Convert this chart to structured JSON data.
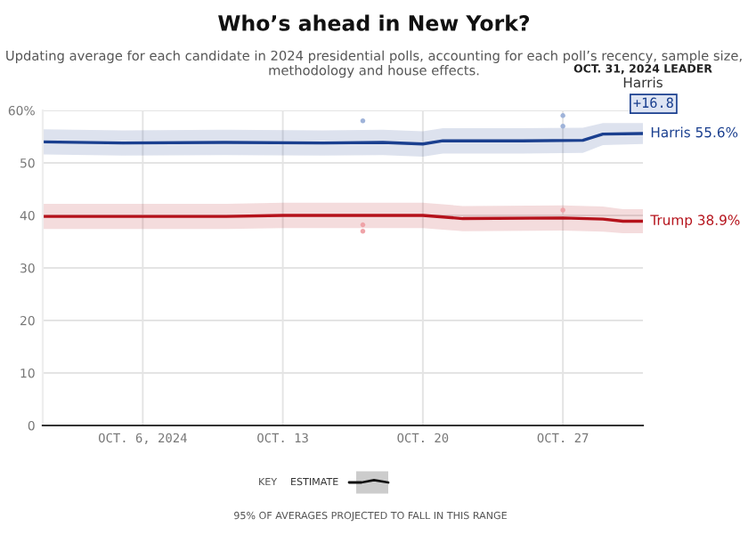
{
  "chart_data": {
    "type": "line",
    "title": "Who’s ahead in New York?",
    "subtitle": "Updating average for each candidate in 2024 presidential polls, accounting for each poll’s recency, sample size, methodology and house effects.",
    "x": [
      "2024-10-01",
      "2024-10-05",
      "2024-10-10",
      "2024-10-15",
      "2024-10-18",
      "2024-10-20",
      "2024-10-21",
      "2024-10-25",
      "2024-10-28",
      "2024-10-29",
      "2024-10-31"
    ],
    "series": [
      {
        "color": "#1a3f8f",
        "values": [
          54.0,
          53.8,
          53.9,
          53.8,
          53.9,
          53.6,
          54.2,
          54.2,
          54.3,
          55.5,
          55.6
        ],
        "lower": [
          51.6,
          51.4,
          51.5,
          51.4,
          51.5,
          51.2,
          51.8,
          51.8,
          51.9,
          53.4,
          53.6
        ],
        "upper": [
          56.4,
          56.2,
          56.3,
          56.2,
          56.3,
          56.0,
          56.6,
          56.6,
          56.7,
          57.6,
          57.6
        ]
      },
      {
        "color": "#b5121b",
        "x": [
          "2024-10-01",
          "2024-10-10",
          "2024-10-13",
          "2024-10-20",
          "2024-10-22",
          "2024-10-27",
          "2024-10-29",
          "2024-10-30",
          "2024-10-31"
        ],
        "values": [
          39.8,
          39.8,
          40.0,
          40.0,
          39.4,
          39.5,
          39.3,
          38.9,
          38.9
        ],
        "lower": [
          37.4,
          37.4,
          37.6,
          37.6,
          37.0,
          37.1,
          36.9,
          36.6,
          36.6
        ],
        "upper": [
          42.2,
          42.2,
          42.4,
          42.4,
          41.8,
          41.9,
          41.7,
          41.2,
          41.2
        ]
      },
      {
        "type": "scatter",
        "color": "#9fb3d9",
        "x": [
          "2024-10-17",
          "2024-10-27",
          "2024-10-27"
        ],
        "values": [
          58,
          59,
          57
        ]
      },
      {
        "type": "scatter",
        "color": "#efa3a8",
        "x": [
          "2024-10-17",
          "2024-10-17",
          "2024-10-27"
        ],
        "values": [
          38.2,
          37,
          41
        ]
      }
    ],
    "xlim": [
      "2024-10-01",
      "2024-10-31"
    ],
    "xticks": [
      {
        "value": "2024-10-06",
        "label": "OCT. 6, 2024"
      },
      {
        "value": "2024-10-13",
        "label": "OCT. 13"
      },
      {
        "value": "2024-10-20",
        "label": "OCT. 20"
      },
      {
        "value": "2024-10-27",
        "label": "OCT. 27"
      }
    ],
    "ylim": [
      0,
      60
    ],
    "yticks": [
      0,
      10,
      20,
      30,
      40,
      50,
      {
        "value": 60,
        "label": "60%"
      }
    ],
    "grid": true,
    "annotations": [
      {
        "text": "Harris 55.6%",
        "x": "2024-10-31",
        "y": 55.6
      },
      {
        "text": "Trump 38.9%",
        "x": "2024-10-31",
        "y": 38.9
      },
      "OCT. 31, 2024 LEADER",
      "Harris",
      "+16.8",
      "KEY",
      "ESTIMATE",
      "95% OF AVERAGES PROJECTED TO FALL IN THIS RANGE"
    ]
  }
}
